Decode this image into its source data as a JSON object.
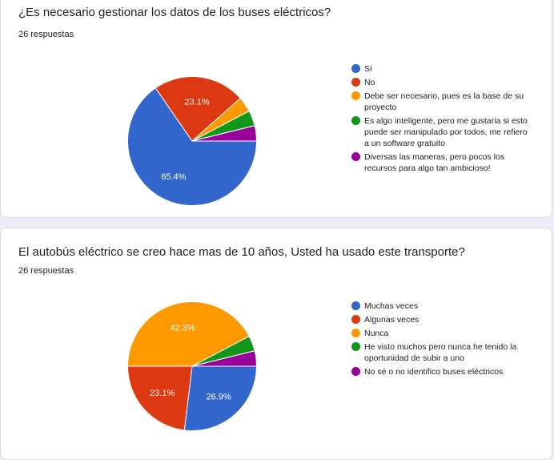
{
  "chart_data": [
    {
      "type": "pie",
      "title": "¿Es necesario gestionar los datos de los buses eléctricos?",
      "subtitle": "26 respuestas",
      "categories": [
        "Sí",
        "No",
        "Debe ser necesario, pues es la base de su proyecto",
        "Es algo inteligente, pero me gustaria si esto puede ser manipulado por todos, me refiero a un software gratuito",
        "Diversas las maneras, pero pocos los recursos para algo tan ambicioso!"
      ],
      "values": [
        17,
        6,
        1,
        1,
        1
      ],
      "value_labels": [
        "65.4%",
        "23.1%",
        "",
        "",
        ""
      ],
      "colors": [
        "#3366cc",
        "#dc3912",
        "#ff9900",
        "#109618",
        "#990099"
      ],
      "legend": "right"
    },
    {
      "type": "pie",
      "title": "El autobús eléctrico se creo hace mas de 10 años, Usted ha usado este transporte?",
      "subtitle": "26 respuestas",
      "categories": [
        "Muchas veces",
        "Algunas veces",
        "Nunca",
        "He visto muchos pero nunca he tenido la oportunidad de subir a uno",
        "No sé o no identifico buses eléctricos"
      ],
      "values": [
        7,
        6,
        11,
        1,
        1
      ],
      "value_labels": [
        "26.9%",
        "23.1%",
        "42.3%",
        "",
        ""
      ],
      "colors": [
        "#3366cc",
        "#dc3912",
        "#ff9900",
        "#109618",
        "#990099"
      ],
      "legend": "right"
    }
  ]
}
